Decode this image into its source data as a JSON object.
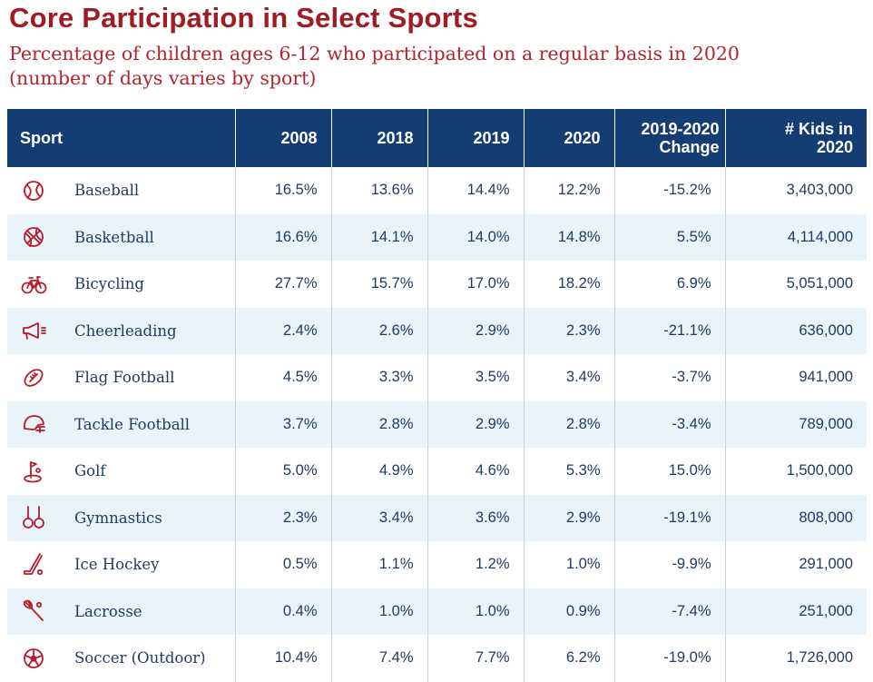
{
  "chart_data": {
    "type": "table",
    "title": "Core Participation in Select Sports",
    "subtitle": "Percentage of children ages 6-12 who participated on a regular basis in 2020 (number of days varies by sport)",
    "columns": [
      "Sport",
      "2008",
      "2018",
      "2019",
      "2020",
      "2019-2020 Change",
      "# Kids in 2020"
    ],
    "rows": [
      {
        "icon": "baseball-icon",
        "sport": "Baseball",
        "y2008": "16.5%",
        "y2018": "13.6%",
        "y2019": "14.4%",
        "y2020": "12.2%",
        "change": "-15.2%",
        "kids": "3,403,000"
      },
      {
        "icon": "basketball-icon",
        "sport": "Basketball",
        "y2008": "16.6%",
        "y2018": "14.1%",
        "y2019": "14.0%",
        "y2020": "14.8%",
        "change": "5.5%",
        "kids": "4,114,000"
      },
      {
        "icon": "bicycle-icon",
        "sport": "Bicycling",
        "y2008": "27.7%",
        "y2018": "15.7%",
        "y2019": "17.0%",
        "y2020": "18.2%",
        "change": "6.9%",
        "kids": "5,051,000"
      },
      {
        "icon": "megaphone-icon",
        "sport": "Cheerleading",
        "y2008": "2.4%",
        "y2018": "2.6%",
        "y2019": "2.9%",
        "y2020": "2.3%",
        "change": "-21.1%",
        "kids": "636,000"
      },
      {
        "icon": "football-icon",
        "sport": "Flag Football",
        "y2008": "4.5%",
        "y2018": "3.3%",
        "y2019": "3.5%",
        "y2020": "3.4%",
        "change": "-3.7%",
        "kids": "941,000"
      },
      {
        "icon": "helmet-icon",
        "sport": "Tackle Football",
        "y2008": "3.7%",
        "y2018": "2.8%",
        "y2019": "2.9%",
        "y2020": "2.8%",
        "change": "-3.4%",
        "kids": "789,000"
      },
      {
        "icon": "golf-icon",
        "sport": "Golf",
        "y2008": "5.0%",
        "y2018": "4.9%",
        "y2019": "4.6%",
        "y2020": "5.3%",
        "change": "15.0%",
        "kids": "1,500,000"
      },
      {
        "icon": "rings-icon",
        "sport": "Gymnastics",
        "y2008": "2.3%",
        "y2018": "3.4%",
        "y2019": "3.6%",
        "y2020": "2.9%",
        "change": "-19.1%",
        "kids": "808,000"
      },
      {
        "icon": "hockey-stick-icon",
        "sport": "Ice Hockey",
        "y2008": "0.5%",
        "y2018": "1.1%",
        "y2019": "1.2%",
        "y2020": "1.0%",
        "change": "-9.9%",
        "kids": "291,000"
      },
      {
        "icon": "lacrosse-stick-icon",
        "sport": "Lacrosse",
        "y2008": "0.4%",
        "y2018": "1.0%",
        "y2019": "1.0%",
        "y2020": "0.9%",
        "change": "-7.4%",
        "kids": "251,000"
      },
      {
        "icon": "soccer-ball-icon",
        "sport": "Soccer (Outdoor)",
        "y2008": "10.4%",
        "y2018": "7.4%",
        "y2019": "7.7%",
        "y2020": "6.2%",
        "change": "-19.0%",
        "kids": "1,726,000"
      }
    ]
  },
  "colors": {
    "title": "#a01c25",
    "subtitle": "#b0252d",
    "header_bg": "#143e73",
    "header_text": "#ffffff",
    "row_alt": "#e8f3fa",
    "body_text": "#1f3b64",
    "icon": "#b81c2a"
  }
}
